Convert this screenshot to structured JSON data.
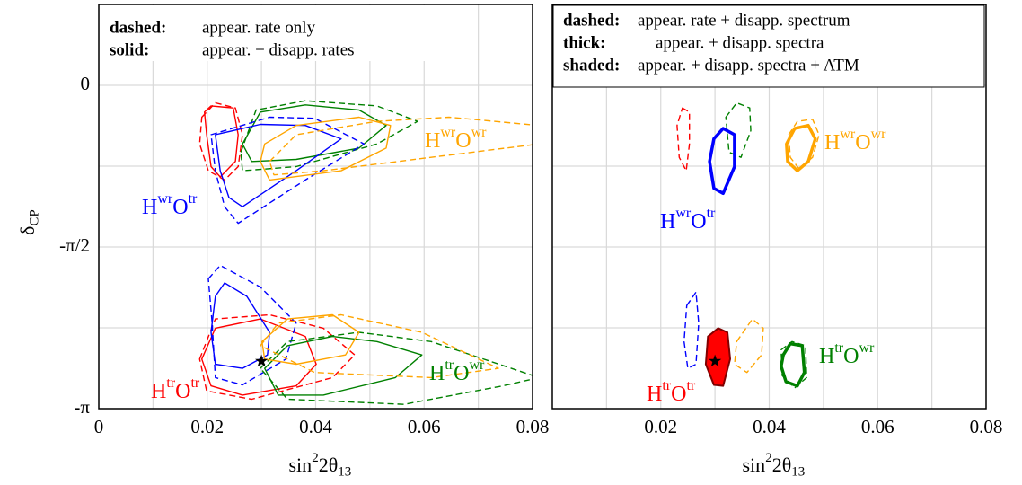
{
  "chart_data": [
    {
      "type": "contour",
      "legend": [
        {
          "key": "dashed:",
          "text": "appear. rate only"
        },
        {
          "key": "solid:",
          "text": "appear. + disapp. rates"
        }
      ],
      "xlabel": [
        {
          "text": "sin"
        },
        {
          "sup": "2"
        },
        {
          "text": "2θ"
        },
        {
          "sub": "13"
        }
      ],
      "ylabel": [
        {
          "text": "δ"
        },
        {
          "sub": "CP"
        }
      ],
      "xlim": [
        0,
        0.08
      ],
      "xticks": [
        0,
        0.02,
        0.04,
        0.06,
        0.08
      ],
      "minor_xticks": [
        0.01,
        0.03,
        0.05,
        0.07
      ],
      "ylim": [
        -3.1416,
        0.7854
      ],
      "yticks": [
        0,
        {
          "value": -1.5708,
          "label": "-π/2"
        },
        {
          "value": -3.1416,
          "label": "-π"
        }
      ],
      "minor_yticks": [
        -0.7854,
        -2.3562
      ],
      "grid": true,
      "contours": [
        {
          "color": "#ff0000",
          "style": "dashed",
          "x": [
            0.019,
            0.0215,
            0.0252,
            0.0265,
            0.0257,
            0.0232,
            0.0202,
            0.0186
          ],
          "y": [
            -0.31,
            -0.17,
            -0.22,
            -0.48,
            -0.79,
            -0.92,
            -0.83,
            -0.57
          ]
        },
        {
          "color": "#ff0000",
          "style": "solid",
          "x": [
            0.0195,
            0.0207,
            0.0248,
            0.0257,
            0.0252,
            0.0224,
            0.0207,
            0.0199
          ],
          "y": [
            -0.26,
            -0.2,
            -0.22,
            -0.48,
            -0.74,
            -0.89,
            -0.79,
            -0.48
          ]
        },
        {
          "color": "#008000",
          "style": "dashed",
          "x": [
            0.0262,
            0.029,
            0.0381,
            0.0513,
            0.0588,
            0.0513,
            0.0364,
            0.0265
          ],
          "y": [
            -0.65,
            -0.24,
            -0.15,
            -0.2,
            -0.35,
            -0.57,
            -0.79,
            -0.83
          ]
        },
        {
          "color": "#008000",
          "style": "solid",
          "x": [
            0.0265,
            0.0298,
            0.0381,
            0.048,
            0.053,
            0.048,
            0.0364,
            0.0282
          ],
          "y": [
            -0.57,
            -0.26,
            -0.19,
            -0.24,
            -0.39,
            -0.61,
            -0.72,
            -0.74
          ]
        },
        {
          "color": "#0000ff",
          "style": "dashed",
          "x": [
            0.0207,
            0.0315,
            0.0398,
            0.0489,
            0.0381,
            0.0257,
            0.0232,
            0.0215
          ],
          "y": [
            -0.48,
            -0.31,
            -0.32,
            -0.57,
            -0.92,
            -1.34,
            -1.18,
            -0.83
          ]
        },
        {
          "color": "#0000ff",
          "style": "solid",
          "x": [
            0.0215,
            0.0298,
            0.0381,
            0.0447,
            0.0364,
            0.0265,
            0.024,
            0.0224
          ],
          "y": [
            -0.48,
            -0.38,
            -0.39,
            -0.52,
            -0.83,
            -1.18,
            -1.09,
            -0.83
          ]
        },
        {
          "color": "#ffa500",
          "style": "dashed",
          "x": [
            0.0315,
            0.0364,
            0.0513,
            0.0646,
            0.0812,
            0.0812,
            0.0613,
            0.0414,
            0.0323
          ],
          "y": [
            -0.74,
            -0.48,
            -0.35,
            -0.31,
            -0.39,
            -0.57,
            -0.7,
            -0.83,
            -0.87
          ]
        },
        {
          "color": "#ffa500",
          "style": "solid",
          "x": [
            0.0306,
            0.0364,
            0.048,
            0.0538,
            0.053,
            0.0447,
            0.0315,
            0.0298
          ],
          "y": [
            -0.57,
            -0.39,
            -0.31,
            -0.39,
            -0.61,
            -0.83,
            -0.92,
            -0.74
          ]
        },
        {
          "color": "#ff0000",
          "style": "dashed",
          "x": [
            0.0186,
            0.0215,
            0.0315,
            0.0414,
            0.0472,
            0.0431,
            0.0282,
            0.0199
          ],
          "y": [
            -2.66,
            -2.27,
            -2.23,
            -2.36,
            -2.62,
            -2.84,
            -3.05,
            -2.97
          ]
        },
        {
          "color": "#ff0000",
          "style": "solid",
          "x": [
            0.019,
            0.0215,
            0.0298,
            0.0381,
            0.0401,
            0.0364,
            0.0265,
            0.0207
          ],
          "y": [
            -2.66,
            -2.36,
            -2.27,
            -2.44,
            -2.71,
            -2.92,
            -3.01,
            -2.92
          ]
        },
        {
          "color": "#0000ff",
          "style": "dashed",
          "x": [
            0.0202,
            0.0224,
            0.0298,
            0.0364,
            0.0345,
            0.0265,
            0.0215,
            0.0209
          ],
          "y": [
            -1.88,
            -1.75,
            -1.96,
            -2.31,
            -2.66,
            -2.91,
            -2.84,
            -2.31
          ]
        },
        {
          "color": "#0000ff",
          "style": "solid",
          "x": [
            0.0215,
            0.0232,
            0.0273,
            0.0315,
            0.0311,
            0.0265,
            0.0215,
            0.0207
          ],
          "y": [
            -2.05,
            -1.92,
            -2.05,
            -2.4,
            -2.62,
            -2.75,
            -2.71,
            -2.4
          ]
        },
        {
          "color": "#008000",
          "style": "dashed",
          "x": [
            0.0298,
            0.0348,
            0.048,
            0.0613,
            0.0812,
            0.0745,
            0.0563,
            0.0348
          ],
          "y": [
            -2.75,
            -2.49,
            -2.4,
            -2.49,
            -2.84,
            -2.92,
            -3.1,
            -3.05
          ]
        },
        {
          "color": "#008000",
          "style": "solid",
          "x": [
            0.0306,
            0.0348,
            0.0431,
            0.0513,
            0.0596,
            0.0547,
            0.0414,
            0.0331
          ],
          "y": [
            -2.75,
            -2.53,
            -2.44,
            -2.49,
            -2.62,
            -2.84,
            -3.01,
            -3.01
          ]
        },
        {
          "color": "#ffa500",
          "style": "dashed",
          "x": [
            0.0298,
            0.0331,
            0.0447,
            0.0596,
            0.0737,
            0.0613,
            0.0398
          ],
          "y": [
            -2.53,
            -2.31,
            -2.23,
            -2.4,
            -2.75,
            -2.84,
            -2.79
          ]
        },
        {
          "color": "#ffa500",
          "style": "solid",
          "x": [
            0.0301,
            0.0348,
            0.0431,
            0.048,
            0.0455,
            0.0364,
            0.0306
          ],
          "y": [
            -2.49,
            -2.27,
            -2.23,
            -2.4,
            -2.62,
            -2.71,
            -2.66
          ]
        }
      ],
      "markers": [
        {
          "x": 0.03,
          "y": -2.68,
          "shape": "star",
          "color": "#000000"
        }
      ],
      "labels": [
        {
          "color": "#0000ff",
          "parts": [
            {
              "text": "H"
            },
            {
              "sup": "wr"
            },
            {
              "text": "O"
            },
            {
              "sup": "tr"
            }
          ]
        },
        {
          "color": "#ffa500",
          "parts": [
            {
              "text": "H"
            },
            {
              "sup": "wr"
            },
            {
              "text": "O"
            },
            {
              "sup": "wr"
            }
          ]
        },
        {
          "color": "#ff0000",
          "parts": [
            {
              "text": "H"
            },
            {
              "sup": "tr"
            },
            {
              "text": "O"
            },
            {
              "sup": "tr"
            }
          ]
        },
        {
          "color": "#008000",
          "parts": [
            {
              "text": "H"
            },
            {
              "sup": "tr"
            },
            {
              "text": "O"
            },
            {
              "sup": "wr"
            }
          ]
        }
      ]
    },
    {
      "type": "contour",
      "legend": [
        {
          "key": "dashed:",
          "text": "appear. rate + disapp. spectrum"
        },
        {
          "key": "thick:",
          "text": "appear. + disapp. spectra"
        },
        {
          "key": "shaded:",
          "text": "appear. + disapp. spectra + ATM"
        }
      ],
      "xlabel": [
        {
          "text": "sin"
        },
        {
          "sup": "2"
        },
        {
          "text": "2θ"
        },
        {
          "sub": "13"
        }
      ],
      "xlim": [
        0,
        0.08
      ],
      "xticks": [
        0.02,
        0.04,
        0.06,
        0.08
      ],
      "minor_xticks": [
        0.01,
        0.03,
        0.05,
        0.07
      ],
      "ylim": [
        -3.1416,
        0.7854
      ],
      "minor_yticks": [
        0,
        -0.7854,
        -1.5708,
        -2.3562
      ],
      "grid": true,
      "contours": [
        {
          "color": "#ff0000",
          "style": "dashed",
          "x": [
            0.024,
            0.0253,
            0.0253,
            0.0247,
            0.0234,
            0.023
          ],
          "y": [
            -0.22,
            -0.26,
            -0.57,
            -0.83,
            -0.7,
            -0.39
          ]
        },
        {
          "color": "#008000",
          "style": "dashed",
          "x": [
            0.032,
            0.034,
            0.0364,
            0.0366,
            0.0348,
            0.0326
          ],
          "y": [
            -0.31,
            -0.17,
            -0.22,
            -0.44,
            -0.7,
            -0.65
          ]
        },
        {
          "color": "#0000ff",
          "style": "thick",
          "x": [
            0.0298,
            0.0315,
            0.0336,
            0.0336,
            0.0315,
            0.0298,
            0.029
          ],
          "y": [
            -0.52,
            -0.42,
            -0.48,
            -0.79,
            -1.05,
            -1.0,
            -0.74
          ]
        },
        {
          "color": "#ffa500",
          "style": "dashed",
          "x": [
            0.0436,
            0.0452,
            0.048,
            0.0492,
            0.048,
            0.0455,
            0.0439
          ],
          "y": [
            -0.48,
            -0.35,
            -0.33,
            -0.48,
            -0.7,
            -0.81,
            -0.7
          ]
        },
        {
          "color": "#ffa500",
          "style": "thick",
          "x": [
            0.0432,
            0.0447,
            0.0472,
            0.0485,
            0.0472,
            0.0452,
            0.0434
          ],
          "y": [
            -0.57,
            -0.42,
            -0.39,
            -0.52,
            -0.74,
            -0.83,
            -0.74
          ]
        },
        {
          "color": "#0000ff",
          "style": "dashed",
          "x": [
            0.0248,
            0.0265,
            0.027,
            0.0265,
            0.025,
            0.0243
          ],
          "y": [
            -2.14,
            -2.01,
            -2.31,
            -2.71,
            -2.75,
            -2.49
          ]
        },
        {
          "color": "#ff0000",
          "style": "filled",
          "edgecolor": "#800000",
          "x": [
            0.0287,
            0.0306,
            0.0323,
            0.0328,
            0.0315,
            0.0298,
            0.0283
          ],
          "y": [
            -2.44,
            -2.36,
            -2.4,
            -2.66,
            -2.92,
            -2.91,
            -2.71
          ]
        },
        {
          "color": "#ffa500",
          "style": "dashed",
          "x": [
            0.034,
            0.0369,
            0.0389,
            0.0386,
            0.0359,
            0.0336
          ],
          "y": [
            -2.49,
            -2.27,
            -2.36,
            -2.62,
            -2.79,
            -2.71
          ]
        },
        {
          "color": "#008000",
          "style": "dashed",
          "x": [
            0.0422,
            0.0442,
            0.0467,
            0.0469,
            0.0447,
            0.0424
          ],
          "y": [
            -2.57,
            -2.49,
            -2.53,
            -2.84,
            -2.94,
            -2.82
          ]
        },
        {
          "color": "#008000",
          "style": "thick",
          "x": [
            0.0426,
            0.0439,
            0.0461,
            0.0465,
            0.0452,
            0.0431,
            0.0422
          ],
          "y": [
            -2.62,
            -2.51,
            -2.53,
            -2.79,
            -2.92,
            -2.88,
            -2.73
          ]
        }
      ],
      "markers": [
        {
          "x": 0.03,
          "y": -2.68,
          "shape": "star",
          "color": "#000000"
        }
      ],
      "labels": [
        {
          "color": "#0000ff",
          "parts": [
            {
              "text": "H"
            },
            {
              "sup": "wr"
            },
            {
              "text": "O"
            },
            {
              "sup": "tr"
            }
          ]
        },
        {
          "color": "#ffa500",
          "parts": [
            {
              "text": "H"
            },
            {
              "sup": "wr"
            },
            {
              "text": "O"
            },
            {
              "sup": "wr"
            }
          ]
        },
        {
          "color": "#ff0000",
          "parts": [
            {
              "text": "H"
            },
            {
              "sup": "tr"
            },
            {
              "text": "O"
            },
            {
              "sup": "tr"
            }
          ]
        },
        {
          "color": "#008000",
          "parts": [
            {
              "text": "H"
            },
            {
              "sup": "tr"
            },
            {
              "text": "O"
            },
            {
              "sup": "wr"
            }
          ]
        }
      ]
    }
  ]
}
